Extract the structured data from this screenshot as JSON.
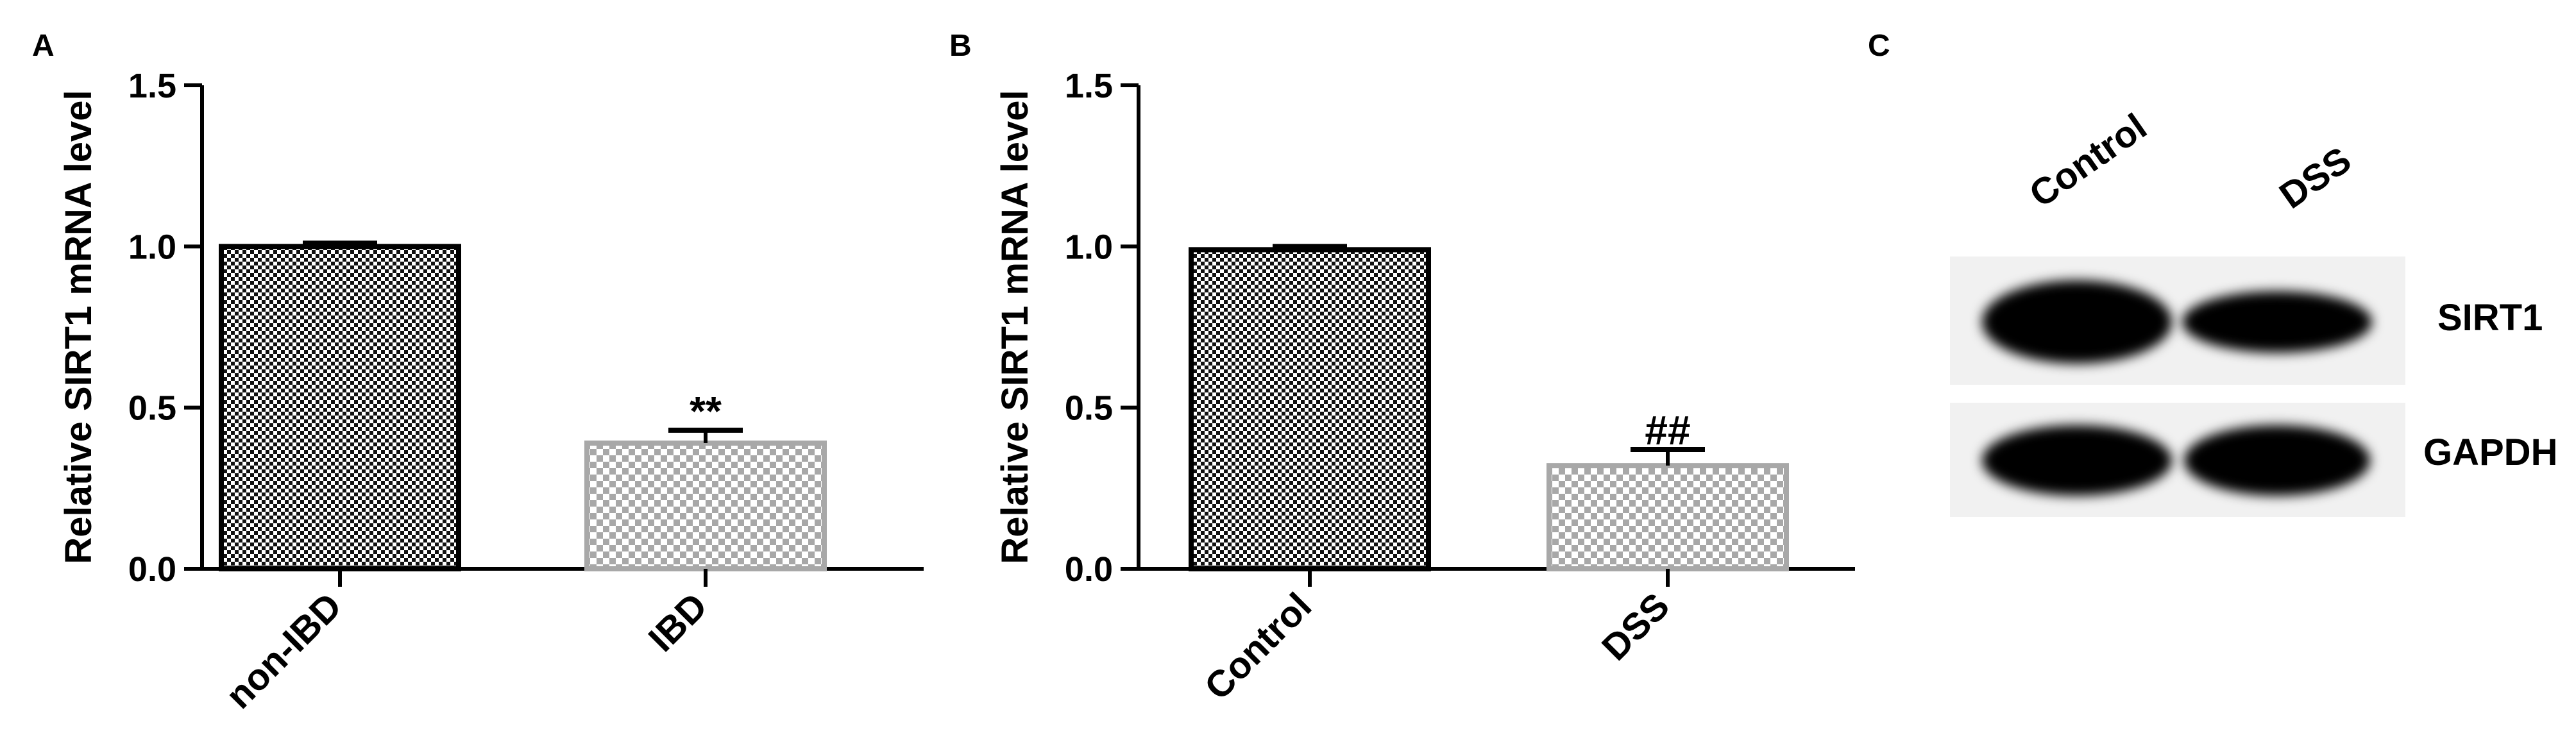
{
  "panels": {
    "a": {
      "letter": "A"
    },
    "b": {
      "letter": "B"
    },
    "c": {
      "letter": "C"
    }
  },
  "chart_data": [
    {
      "type": "bar",
      "panel": "A",
      "categories": [
        "non-IBD",
        "IBD"
      ],
      "values": [
        1.0,
        0.39
      ],
      "errors": [
        0.01,
        0.04
      ],
      "significance": [
        "",
        "**"
      ],
      "fills": [
        "#1a1a1a",
        "#a8a8a8"
      ],
      "title": "",
      "xlabel": "",
      "ylabel": "Relative SIRT1 mRNA level",
      "ylim": [
        0,
        1.5
      ],
      "yticks": [
        "0.0",
        "0.5",
        "1.0",
        "1.5"
      ],
      "grid": false
    },
    {
      "type": "bar",
      "panel": "B",
      "categories": [
        "Control",
        "DSS"
      ],
      "values": [
        0.99,
        0.32
      ],
      "errors": [
        0.01,
        0.05
      ],
      "significance": [
        "",
        "##"
      ],
      "fills": [
        "#1a1a1a",
        "#a8a8a8"
      ],
      "title": "",
      "xlabel": "",
      "ylabel": "Relative SIRT1 mRNA level",
      "ylim": [
        0,
        1.5
      ],
      "yticks": [
        "0.0",
        "0.5",
        "1.0",
        "1.5"
      ],
      "grid": false
    }
  ],
  "western_blot": {
    "lanes": [
      "Control",
      "DSS"
    ],
    "rows": [
      {
        "label": "SIRT1",
        "intensity": [
          1.0,
          0.75
        ]
      },
      {
        "label": "GAPDH",
        "intensity": [
          1.0,
          1.0
        ]
      }
    ]
  }
}
